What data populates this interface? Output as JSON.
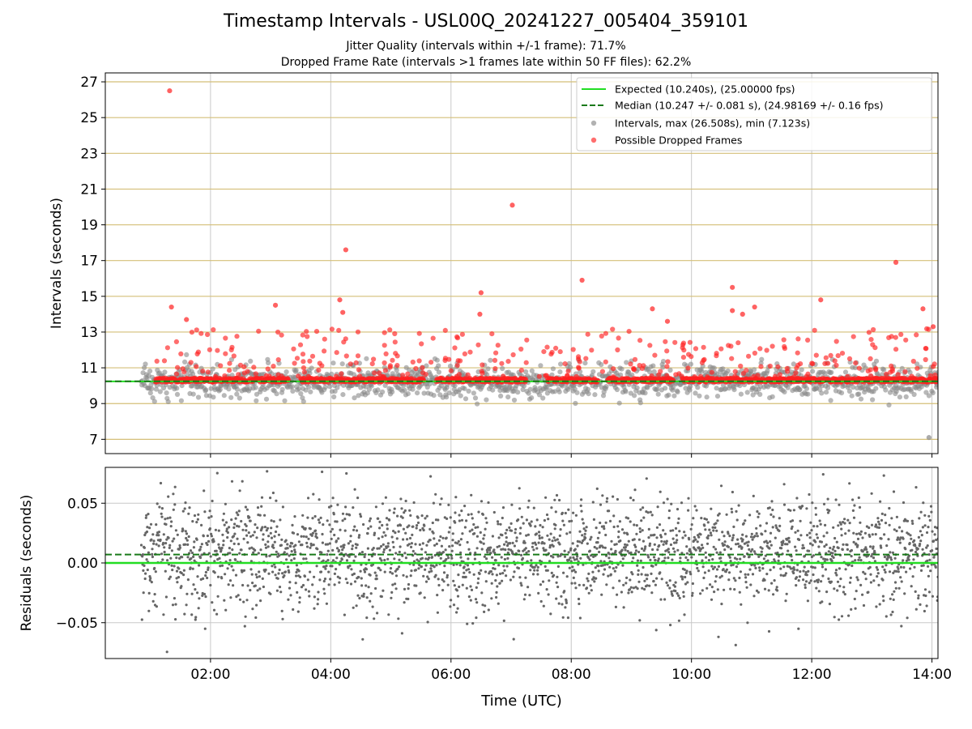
{
  "title": "Timestamp Intervals - USL00Q_20241227_005404_359101",
  "subtitle_lines": [
    "Jitter Quality (intervals within +/-1 frame): 71.7%",
    "Dropped Frame Rate (intervals >1 frames late within 50 FF files): 62.2%"
  ],
  "colors": {
    "expected_line": "#22dd22",
    "median_line": "#1a7a1a",
    "intervals_points": "#888888",
    "dropped_points": "#ff2020",
    "residual_points": "#666666",
    "gridlines_h_top": "#d4bf78",
    "gridlines_v": "#c8c8c8"
  },
  "chart_data": [
    {
      "type": "scatter",
      "panel": "top",
      "xlabel": "",
      "ylabel": "Intervals (seconds)",
      "xlim_hours": [
        0.25,
        14.1
      ],
      "ylim": [
        6.2,
        27.5
      ],
      "yticks": [
        7,
        9,
        11,
        13,
        15,
        17,
        19,
        21,
        23,
        25,
        27
      ],
      "xtick_hours": [
        2,
        4,
        6,
        8,
        10,
        12,
        14
      ],
      "xtick_labels": [
        "02:00",
        "04:00",
        "06:00",
        "08:00",
        "10:00",
        "12:00",
        "14:00"
      ],
      "grid": true,
      "legend": {
        "placement": "top-right",
        "entries": [
          {
            "label": "Expected (10.240s), (25.00000 fps)",
            "style": "line"
          },
          {
            "label": "Median (10.247 +/- 0.081 s), (24.98169 +/- 0.16 fps)",
            "style": "dashed"
          },
          {
            "label": "Intervals, max (26.508s), min (7.123s)",
            "style": "gray-dot"
          },
          {
            "label": "Possible Dropped Frames",
            "style": "red-dot"
          }
        ]
      },
      "expected_value": 10.24,
      "median_value": 10.247,
      "series_note_x_range_hours": [
        0.8,
        14.1
      ],
      "outliers": [
        {
          "t": 1.32,
          "y": 26.5
        },
        {
          "t": 1.35,
          "y": 14.4
        },
        {
          "t": 1.6,
          "y": 13.7
        },
        {
          "t": 3.08,
          "y": 14.5
        },
        {
          "t": 4.15,
          "y": 14.8
        },
        {
          "t": 4.2,
          "y": 14.1
        },
        {
          "t": 4.25,
          "y": 17.6
        },
        {
          "t": 6.48,
          "y": 14.0
        },
        {
          "t": 6.5,
          "y": 15.2
        },
        {
          "t": 7.02,
          "y": 20.1
        },
        {
          "t": 8.18,
          "y": 15.9
        },
        {
          "t": 9.35,
          "y": 14.3
        },
        {
          "t": 9.6,
          "y": 13.6
        },
        {
          "t": 10.68,
          "y": 15.5
        },
        {
          "t": 10.68,
          "y": 14.2
        },
        {
          "t": 10.85,
          "y": 14.0
        },
        {
          "t": 11.05,
          "y": 14.4
        },
        {
          "t": 12.15,
          "y": 14.8
        },
        {
          "t": 13.4,
          "y": 16.9
        },
        {
          "t": 13.85,
          "y": 14.3
        },
        {
          "t": 13.95,
          "y": 7.1
        },
        {
          "t": 14.02,
          "y": 13.3
        }
      ]
    },
    {
      "type": "scatter",
      "panel": "bottom",
      "xlabel": "Time (UTC)",
      "ylabel": "Residuals (seconds)",
      "xlim_hours": [
        0.25,
        14.1
      ],
      "ylim": [
        -0.08,
        0.08
      ],
      "yticks": [
        -0.05,
        0.0,
        0.05
      ],
      "ytick_labels": [
        "−0.05",
        "0.00",
        "0.05"
      ],
      "xtick_hours": [
        2,
        4,
        6,
        8,
        10,
        12,
        14
      ],
      "xtick_labels": [
        "02:00",
        "04:00",
        "06:00",
        "08:00",
        "10:00",
        "12:00",
        "14:00"
      ],
      "grid": true,
      "expected_value": 0.0,
      "median_value": 0.007
    }
  ]
}
